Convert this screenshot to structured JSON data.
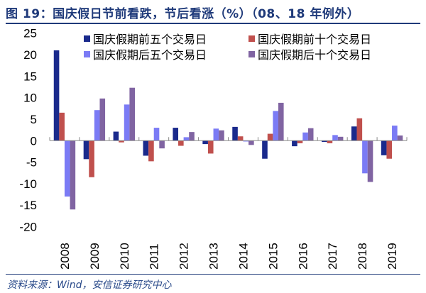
{
  "chart_data": {
    "type": "bar",
    "title": "图 19：国庆假日节前看跌，节后看涨（%）（08、18 年例外）",
    "xlabel": "",
    "ylabel": "",
    "ylim": [
      -20,
      25
    ],
    "yticks": [
      25,
      20,
      15,
      10,
      5,
      0,
      -5,
      -10,
      -15,
      -20
    ],
    "grid": false,
    "legend_position": "top-right",
    "categories": [
      "2008",
      "2009",
      "2010",
      "2011",
      "2012",
      "2013",
      "2014",
      "2015",
      "2016",
      "2017",
      "2018",
      "2019"
    ],
    "series": [
      {
        "name": "国庆假期前五个交易日",
        "color": "#1a2a8c",
        "values": [
          21.0,
          -4.3,
          2.1,
          -3.5,
          3.0,
          -0.8,
          3.2,
          -4.2,
          -1.3,
          -0.3,
          3.3,
          -3.4
        ]
      },
      {
        "name": "国庆假期前十个交易日",
        "color": "#c0504d",
        "values": [
          6.5,
          -8.5,
          -0.4,
          -4.8,
          -1.2,
          -3.0,
          1.0,
          1.6,
          -0.6,
          -0.6,
          5.2,
          -4.2
        ]
      },
      {
        "name": "国庆假期后五个交易日",
        "color": "#7b7bf5",
        "values": [
          -13.0,
          7.1,
          8.4,
          3.0,
          0.8,
          2.8,
          -0.2,
          6.9,
          1.9,
          1.3,
          -7.6,
          3.5
        ]
      },
      {
        "name": "国庆假期后十个交易日",
        "color": "#8064a2",
        "values": [
          -16.0,
          9.8,
          12.3,
          -1.8,
          2.0,
          2.4,
          -1.0,
          8.8,
          2.9,
          0.9,
          -9.6,
          1.2
        ]
      }
    ]
  },
  "source": "资料来源：Wind，安信证券研究中心"
}
